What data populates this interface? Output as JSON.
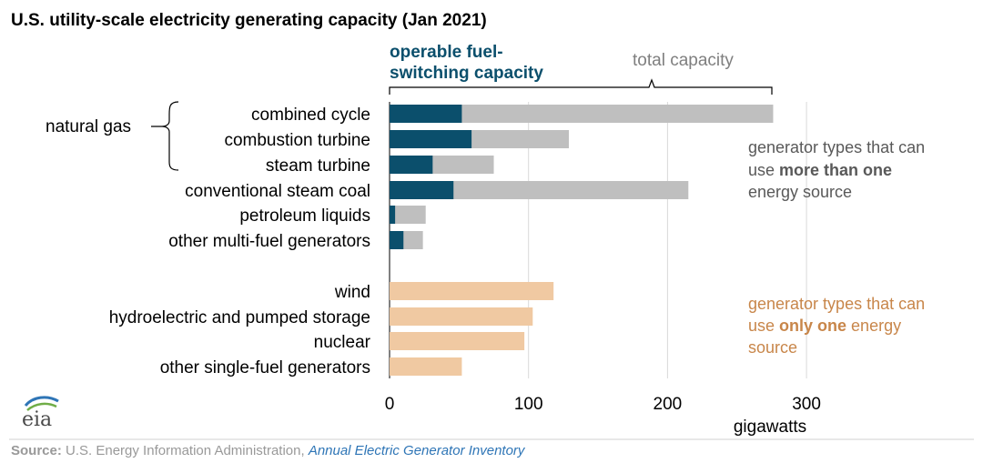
{
  "chart_data": {
    "type": "bar",
    "orientation": "horizontal",
    "title": "U.S. utility-scale electricity generating capacity (Jan 2021)",
    "xlabel": "gigawatts",
    "xlim": [
      0,
      300
    ],
    "xticks": [
      "0",
      "100",
      "200",
      "300"
    ],
    "grid": true,
    "groups": [
      {
        "categories": [
          "combined cycle",
          "combustion turbine",
          "steam turbine",
          "conventional steam coal",
          "petroleum liquids",
          "other multi-fuel generators"
        ],
        "series": [
          {
            "name": "operable fuel-switching capacity",
            "values": [
              52,
              59,
              31,
              46,
              4,
              10
            ]
          },
          {
            "name": "total capacity",
            "values": [
              276,
              129,
              75,
              215,
              26,
              24
            ]
          }
        ],
        "annotation": [
          "generator types that can",
          "use ",
          "more than one",
          "energy source"
        ]
      },
      {
        "categories": [
          "wind",
          "hydroelectric and pumped storage",
          "nuclear",
          "other single-fuel generators"
        ],
        "values": [
          118,
          103,
          97,
          52
        ],
        "annotation": [
          "generator types that can",
          "use ",
          "only one",
          " energy",
          "source"
        ]
      }
    ],
    "bracket_label": "natural gas",
    "legend": {
      "fuel_switching": [
        "operable fuel-",
        "switching capacity"
      ],
      "total": "total capacity"
    },
    "colors": {
      "fuel_switching": "#0b4f6c",
      "total": "#bfbfbf",
      "single_fuel": "#f0c9a2",
      "grid": "#d9d9d9",
      "multi_text": "#595959",
      "single_text": "#c8864a"
    }
  },
  "source": {
    "label": "Source:",
    "text": " U.S. Energy Information Administration, ",
    "link": "Annual Electric Generator Inventory"
  },
  "logo": {
    "text": "eia"
  }
}
